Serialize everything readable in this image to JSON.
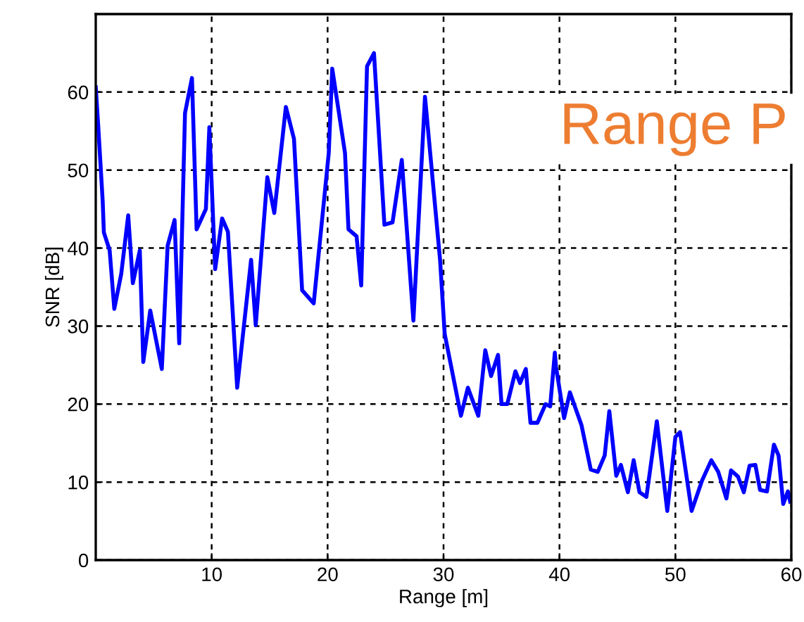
{
  "chart_data": {
    "type": "line",
    "xlabel": "Range [m]",
    "ylabel": "SNR [dB]",
    "annotations": [
      "Range P"
    ],
    "xlim": [
      0,
      60
    ],
    "xticks": [
      10,
      20,
      30,
      40,
      50,
      60
    ],
    "ylim": [
      0,
      70
    ],
    "yticks": [
      0,
      10,
      20,
      30,
      40,
      50,
      60
    ],
    "grid": true,
    "line_style": "solid",
    "series": [
      {
        "color": "#0000ff",
        "x": [
          0,
          0.2,
          0.6,
          0.7,
          1.2,
          1.6,
          2.2,
          2.8,
          3.2,
          3.8,
          4.1,
          4.7,
          5.7,
          6.2,
          6.8,
          7.2,
          7.7,
          8.3,
          8.7,
          9.5,
          9.8,
          10.3,
          10.9,
          11.4,
          12.2,
          13.4,
          13.8,
          14.8,
          15.4,
          16.4,
          17.1,
          17.8,
          18.8,
          20.1,
          20.4,
          21.5,
          21.8,
          22.5,
          22.9,
          23.4,
          24,
          24.9,
          25.6,
          26.4,
          27.4,
          28.4,
          29.7,
          30.1,
          31.5,
          32.1,
          33,
          33.6,
          34.1,
          34.7,
          35,
          35.5,
          36.2,
          36.6,
          37.1,
          37.5,
          38.1,
          38.8,
          39.2,
          39.6,
          39.7,
          40.4,
          40.9,
          41.9,
          42.7,
          43.3,
          43.9,
          44.3,
          44.9,
          45.3,
          45.9,
          46.4,
          46.9,
          47.5,
          48.4,
          49.3,
          50,
          50.4,
          51.4,
          52.3,
          53.1,
          53.7,
          54.4,
          54.8,
          55.4,
          55.9,
          56.4,
          56.9,
          57.3,
          57.9,
          58.5,
          58.9,
          59.3,
          59.7,
          59.9
        ],
        "values": [
          60.6,
          56,
          46,
          42,
          39.7,
          32.2,
          36.7,
          44.2,
          35.5,
          39.7,
          25.4,
          32,
          24.5,
          40.3,
          43.6,
          27.8,
          57.3,
          61.8,
          42.4,
          45,
          55.5,
          37.3,
          43.8,
          42.1,
          22.1,
          38.5,
          30.1,
          49.1,
          44.5,
          58.1,
          54,
          34.6,
          32.9,
          52.2,
          63,
          52.2,
          42.4,
          41.5,
          35.2,
          63.3,
          65,
          43,
          43.3,
          51.3,
          30.7,
          59.4,
          38.5,
          29,
          18.5,
          22.1,
          18.5,
          26.9,
          23.6,
          26.3,
          20,
          20,
          24.2,
          22.7,
          24.5,
          17.6,
          17.6,
          20,
          19.7,
          26.6,
          24.8,
          18.2,
          21.5,
          17.3,
          11.6,
          11.3,
          13.4,
          19.1,
          10.8,
          12.2,
          8.7,
          12.8,
          8.7,
          8.1,
          17.8,
          6.3,
          15.8,
          16.4,
          6.3,
          10.2,
          12.8,
          11.3,
          7.9,
          11.5,
          10.7,
          8.7,
          12.1,
          12.2,
          9,
          8.8,
          14.8,
          13.4,
          7.2,
          8.8,
          7.5
        ]
      }
    ]
  }
}
